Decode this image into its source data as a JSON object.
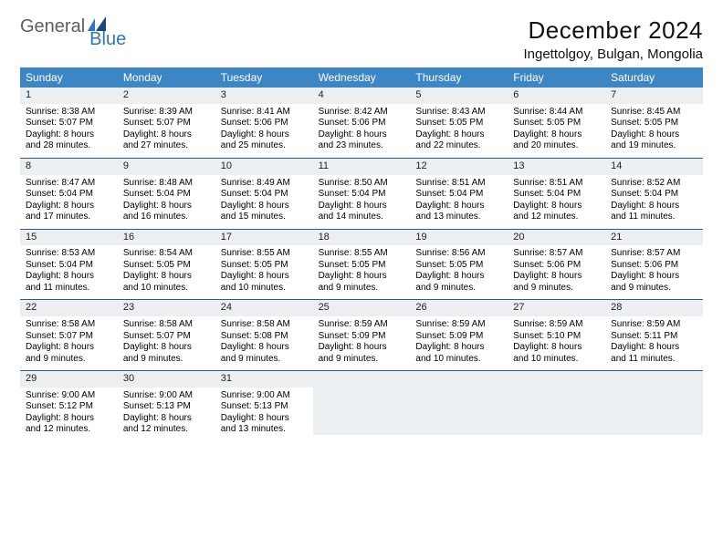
{
  "logo": {
    "general": "General",
    "blue": "Blue"
  },
  "title": "December 2024",
  "location": "Ingettolgoy, Bulgan, Mongolia",
  "colors": {
    "header_bg": "#3d86c6",
    "header_text": "#ffffff",
    "daynum_bg": "#eceff1",
    "week_border": "#2a5d8a",
    "logo_gray": "#5f5f5f",
    "logo_blue": "#2a77bd"
  },
  "weekdays": [
    "Sunday",
    "Monday",
    "Tuesday",
    "Wednesday",
    "Thursday",
    "Friday",
    "Saturday"
  ],
  "layout": {
    "columns": 7,
    "rows": 5,
    "cell_font_size": 10,
    "header_font_size": 12
  },
  "days": [
    {
      "n": 1,
      "sunrise": "8:38 AM",
      "sunset": "5:07 PM",
      "dl": "8 hours and 28 minutes."
    },
    {
      "n": 2,
      "sunrise": "8:39 AM",
      "sunset": "5:07 PM",
      "dl": "8 hours and 27 minutes."
    },
    {
      "n": 3,
      "sunrise": "8:41 AM",
      "sunset": "5:06 PM",
      "dl": "8 hours and 25 minutes."
    },
    {
      "n": 4,
      "sunrise": "8:42 AM",
      "sunset": "5:06 PM",
      "dl": "8 hours and 23 minutes."
    },
    {
      "n": 5,
      "sunrise": "8:43 AM",
      "sunset": "5:05 PM",
      "dl": "8 hours and 22 minutes."
    },
    {
      "n": 6,
      "sunrise": "8:44 AM",
      "sunset": "5:05 PM",
      "dl": "8 hours and 20 minutes."
    },
    {
      "n": 7,
      "sunrise": "8:45 AM",
      "sunset": "5:05 PM",
      "dl": "8 hours and 19 minutes."
    },
    {
      "n": 8,
      "sunrise": "8:47 AM",
      "sunset": "5:04 PM",
      "dl": "8 hours and 17 minutes."
    },
    {
      "n": 9,
      "sunrise": "8:48 AM",
      "sunset": "5:04 PM",
      "dl": "8 hours and 16 minutes."
    },
    {
      "n": 10,
      "sunrise": "8:49 AM",
      "sunset": "5:04 PM",
      "dl": "8 hours and 15 minutes."
    },
    {
      "n": 11,
      "sunrise": "8:50 AM",
      "sunset": "5:04 PM",
      "dl": "8 hours and 14 minutes."
    },
    {
      "n": 12,
      "sunrise": "8:51 AM",
      "sunset": "5:04 PM",
      "dl": "8 hours and 13 minutes."
    },
    {
      "n": 13,
      "sunrise": "8:51 AM",
      "sunset": "5:04 PM",
      "dl": "8 hours and 12 minutes."
    },
    {
      "n": 14,
      "sunrise": "8:52 AM",
      "sunset": "5:04 PM",
      "dl": "8 hours and 11 minutes."
    },
    {
      "n": 15,
      "sunrise": "8:53 AM",
      "sunset": "5:04 PM",
      "dl": "8 hours and 11 minutes."
    },
    {
      "n": 16,
      "sunrise": "8:54 AM",
      "sunset": "5:05 PM",
      "dl": "8 hours and 10 minutes."
    },
    {
      "n": 17,
      "sunrise": "8:55 AM",
      "sunset": "5:05 PM",
      "dl": "8 hours and 10 minutes."
    },
    {
      "n": 18,
      "sunrise": "8:55 AM",
      "sunset": "5:05 PM",
      "dl": "8 hours and 9 minutes."
    },
    {
      "n": 19,
      "sunrise": "8:56 AM",
      "sunset": "5:05 PM",
      "dl": "8 hours and 9 minutes."
    },
    {
      "n": 20,
      "sunrise": "8:57 AM",
      "sunset": "5:06 PM",
      "dl": "8 hours and 9 minutes."
    },
    {
      "n": 21,
      "sunrise": "8:57 AM",
      "sunset": "5:06 PM",
      "dl": "8 hours and 9 minutes."
    },
    {
      "n": 22,
      "sunrise": "8:58 AM",
      "sunset": "5:07 PM",
      "dl": "8 hours and 9 minutes."
    },
    {
      "n": 23,
      "sunrise": "8:58 AM",
      "sunset": "5:07 PM",
      "dl": "8 hours and 9 minutes."
    },
    {
      "n": 24,
      "sunrise": "8:58 AM",
      "sunset": "5:08 PM",
      "dl": "8 hours and 9 minutes."
    },
    {
      "n": 25,
      "sunrise": "8:59 AM",
      "sunset": "5:09 PM",
      "dl": "8 hours and 9 minutes."
    },
    {
      "n": 26,
      "sunrise": "8:59 AM",
      "sunset": "5:09 PM",
      "dl": "8 hours and 10 minutes."
    },
    {
      "n": 27,
      "sunrise": "8:59 AM",
      "sunset": "5:10 PM",
      "dl": "8 hours and 10 minutes."
    },
    {
      "n": 28,
      "sunrise": "8:59 AM",
      "sunset": "5:11 PM",
      "dl": "8 hours and 11 minutes."
    },
    {
      "n": 29,
      "sunrise": "9:00 AM",
      "sunset": "5:12 PM",
      "dl": "8 hours and 12 minutes."
    },
    {
      "n": 30,
      "sunrise": "9:00 AM",
      "sunset": "5:13 PM",
      "dl": "8 hours and 12 minutes."
    },
    {
      "n": 31,
      "sunrise": "9:00 AM",
      "sunset": "5:13 PM",
      "dl": "8 hours and 13 minutes."
    }
  ],
  "labels": {
    "sunrise": "Sunrise:",
    "sunset": "Sunset:",
    "daylight": "Daylight:"
  }
}
